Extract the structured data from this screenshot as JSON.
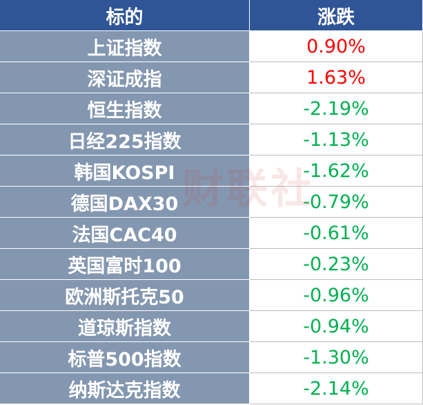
{
  "table": {
    "header": [
      "标的",
      "涨跌"
    ],
    "rows": [
      [
        "上证指数",
        "0.90%"
      ],
      [
        "深证成指",
        "1.63%"
      ],
      [
        "恒生指数",
        "-2.19%"
      ],
      [
        "日经225指数",
        "-1.13%"
      ],
      [
        "韩国KOSPI",
        "-1.62%"
      ],
      [
        "德国DAX30",
        "-0.79%"
      ],
      [
        "法国CAC40",
        "-0.61%"
      ],
      [
        "英国富时100",
        "-0.23%"
      ],
      [
        "欧洲斯托克50",
        "-0.96%"
      ],
      [
        "道琼斯指数",
        "-0.94%"
      ],
      [
        "标普500指数",
        "-1.30%"
      ],
      [
        "纳斯达克指数",
        "-2.14%"
      ]
    ],
    "up_color": "#ff0000",
    "down_color": "#00b050"
  },
  "watermark": "财联社"
}
